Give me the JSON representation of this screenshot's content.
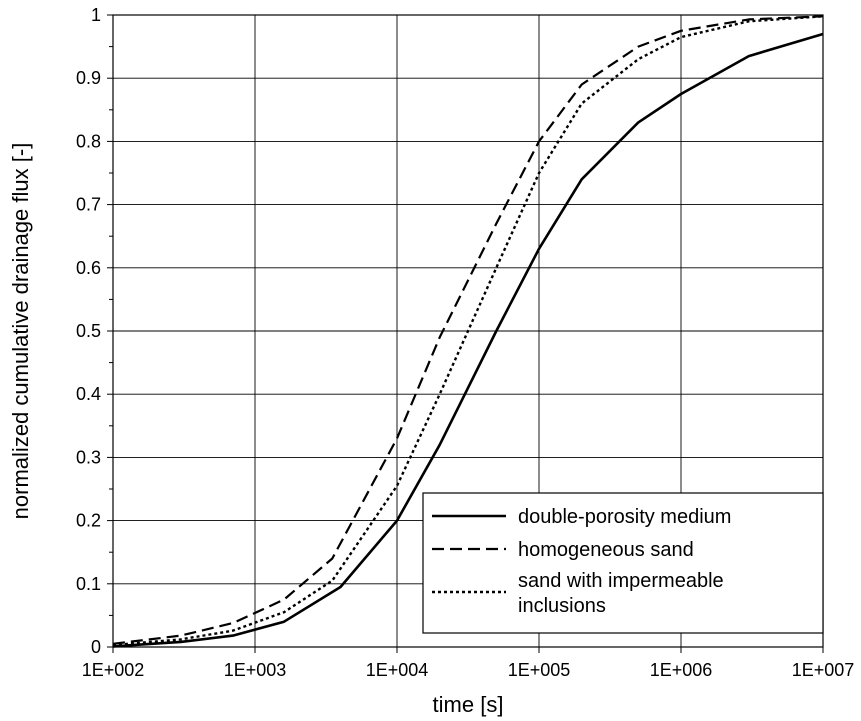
{
  "chart_data": {
    "type": "line",
    "xlabel": "time [s]",
    "ylabel": "normalized cumulative drainage flux [-]",
    "x_scale": "log",
    "xlim": [
      100,
      10000000
    ],
    "ylim": [
      0,
      1
    ],
    "x_ticks": [
      100,
      1000,
      10000,
      100000,
      1000000,
      10000000
    ],
    "x_tick_labels": [
      "1E+002",
      "1E+003",
      "1E+004",
      "1E+005",
      "1E+006",
      "1E+007"
    ],
    "y_ticks": [
      0,
      0.1,
      0.2,
      0.3,
      0.4,
      0.5,
      0.6,
      0.7,
      0.8,
      0.9,
      1
    ],
    "y_tick_labels": [
      "0",
      "0.1",
      "0.2",
      "0.3",
      "0.4",
      "0.5",
      "0.6",
      "0.7",
      "0.8",
      "0.9",
      "1"
    ],
    "grid": true,
    "legend_position": "bottom-right",
    "series": [
      {
        "name": "double-porosity medium",
        "line_style": "solid",
        "color": "#000000",
        "x": [
          100,
          300,
          700,
          1600,
          4000,
          10000,
          20000,
          50000,
          100000,
          200000,
          500000,
          1000000,
          3000000,
          10000000
        ],
        "y": [
          0.001,
          0.008,
          0.018,
          0.04,
          0.095,
          0.2,
          0.32,
          0.5,
          0.63,
          0.74,
          0.83,
          0.875,
          0.935,
          0.97
        ]
      },
      {
        "name": "homogeneous sand",
        "line_style": "dashed",
        "color": "#000000",
        "x": [
          100,
          300,
          700,
          1600,
          3500,
          10000,
          20000,
          50000,
          100000,
          200000,
          500000,
          1000000,
          3000000,
          10000000
        ],
        "y": [
          0.005,
          0.018,
          0.038,
          0.075,
          0.14,
          0.33,
          0.49,
          0.67,
          0.8,
          0.89,
          0.95,
          0.975,
          0.993,
          0.998
        ]
      },
      {
        "name": "sand with impermeable inclusions",
        "line_style": "dotted",
        "color": "#000000",
        "x": [
          100,
          300,
          700,
          1600,
          3500,
          10000,
          20000,
          50000,
          100000,
          200000,
          500000,
          1000000,
          3000000,
          10000000
        ],
        "y": [
          0.003,
          0.012,
          0.026,
          0.055,
          0.105,
          0.255,
          0.4,
          0.6,
          0.75,
          0.86,
          0.93,
          0.965,
          0.99,
          0.998
        ]
      }
    ],
    "legend": [
      {
        "lines": [
          "double-porosity medium"
        ]
      },
      {
        "lines": [
          "homogeneous sand"
        ]
      },
      {
        "lines": [
          "sand with impermeable",
          "inclusions"
        ]
      }
    ]
  }
}
